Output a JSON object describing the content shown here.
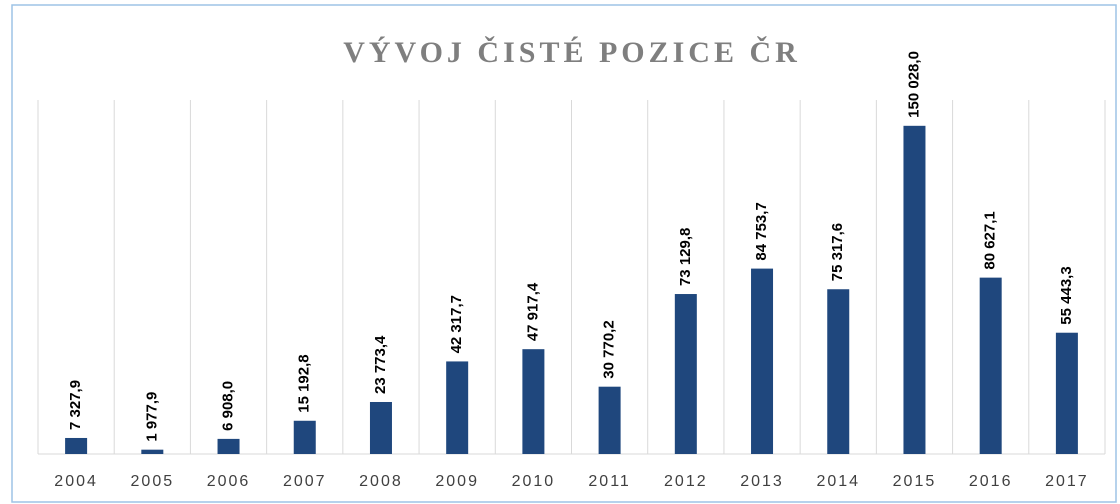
{
  "chart_data": {
    "type": "bar",
    "title": "VÝVOJ ČISTÉ POZICE ČR",
    "categories": [
      "2004",
      "2005",
      "2006",
      "2007",
      "2008",
      "2009",
      "2010",
      "2011",
      "2012",
      "2013",
      "2014",
      "2015",
      "2016",
      "2017"
    ],
    "values": [
      7327.9,
      1977.9,
      6908.0,
      15192.8,
      23773.4,
      42317.7,
      47917.4,
      30770.2,
      73129.8,
      84753.7,
      75317.6,
      150028.0,
      80627.1,
      55443.3
    ],
    "value_labels": [
      "7 327,9",
      "1 977,9",
      "6 908,0",
      "15 192,8",
      "23 773,4",
      "42 317,7",
      "47 917,4",
      "30 770,2",
      "73 129,8",
      "84 753,7",
      "75 317,6",
      "150 028,0",
      "80 627,1",
      "55 443,3"
    ],
    "color": "#1f477d",
    "ylim": [
      0,
      160000
    ],
    "grid": true
  }
}
